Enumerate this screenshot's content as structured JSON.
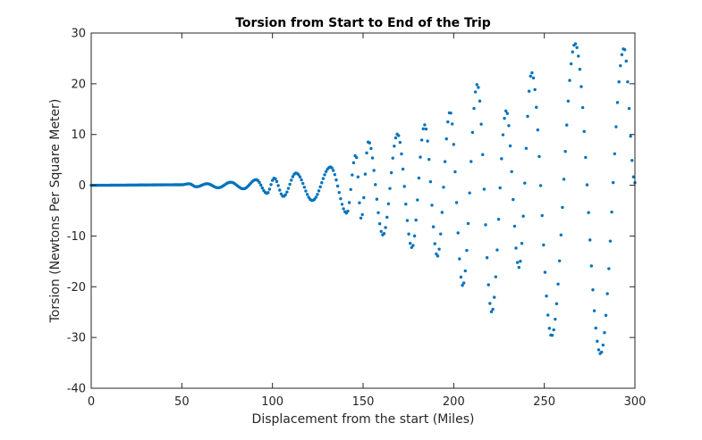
{
  "chart_data": {
    "type": "scatter",
    "title": "Torsion from Start to End of the Trip",
    "xlabel": "Displacement from the start (Miles)",
    "ylabel": "Torsion (Newtons Per Square Meter)",
    "xlim": [
      0,
      300
    ],
    "ylim": [
      -40,
      30
    ],
    "xticks": [
      "0",
      "50",
      "100",
      "150",
      "200",
      "250",
      "300"
    ],
    "yticks": [
      "-40",
      "-30",
      "-20",
      "-10",
      "0",
      "10",
      "20",
      "30"
    ],
    "grid": false,
    "box": true,
    "marker_color": "#0072BD",
    "sample_step_miles": 0.8,
    "oscillation_peaks": [
      {
        "x": 0,
        "y": 0
      },
      {
        "x": 50,
        "y": 0.1
      },
      {
        "x": 54,
        "y": 0.3
      },
      {
        "x": 58,
        "y": -0.3
      },
      {
        "x": 64,
        "y": 0.3
      },
      {
        "x": 70,
        "y": -0.5
      },
      {
        "x": 77,
        "y": 0.6
      },
      {
        "x": 84,
        "y": -0.7
      },
      {
        "x": 91,
        "y": 1.1
      },
      {
        "x": 97,
        "y": -1.6
      },
      {
        "x": 101,
        "y": 1.4
      },
      {
        "x": 106,
        "y": -2.2
      },
      {
        "x": 113,
        "y": 2.4
      },
      {
        "x": 122,
        "y": -3.0
      },
      {
        "x": 132,
        "y": 3.6
      },
      {
        "x": 141,
        "y": -5.5
      },
      {
        "x": 146,
        "y": 6.0
      },
      {
        "x": 149,
        "y": -6.6
      },
      {
        "x": 153,
        "y": 8.6
      },
      {
        "x": 161,
        "y": -9.8
      },
      {
        "x": 169,
        "y": 10.1
      },
      {
        "x": 177,
        "y": -12.3
      },
      {
        "x": 184,
        "y": 11.9
      },
      {
        "x": 191,
        "y": -14.0
      },
      {
        "x": 198,
        "y": 14.5
      },
      {
        "x": 205,
        "y": -19.8
      },
      {
        "x": 213,
        "y": 19.9
      },
      {
        "x": 221,
        "y": -25.0
      },
      {
        "x": 229,
        "y": 14.7
      },
      {
        "x": 236,
        "y": -16.2
      },
      {
        "x": 243,
        "y": 22.2
      },
      {
        "x": 254,
        "y": -29.7
      },
      {
        "x": 267,
        "y": 27.9
      },
      {
        "x": 281,
        "y": -33.2
      },
      {
        "x": 294,
        "y": 27.0
      },
      {
        "x": 300,
        "y": 0.5
      }
    ]
  }
}
